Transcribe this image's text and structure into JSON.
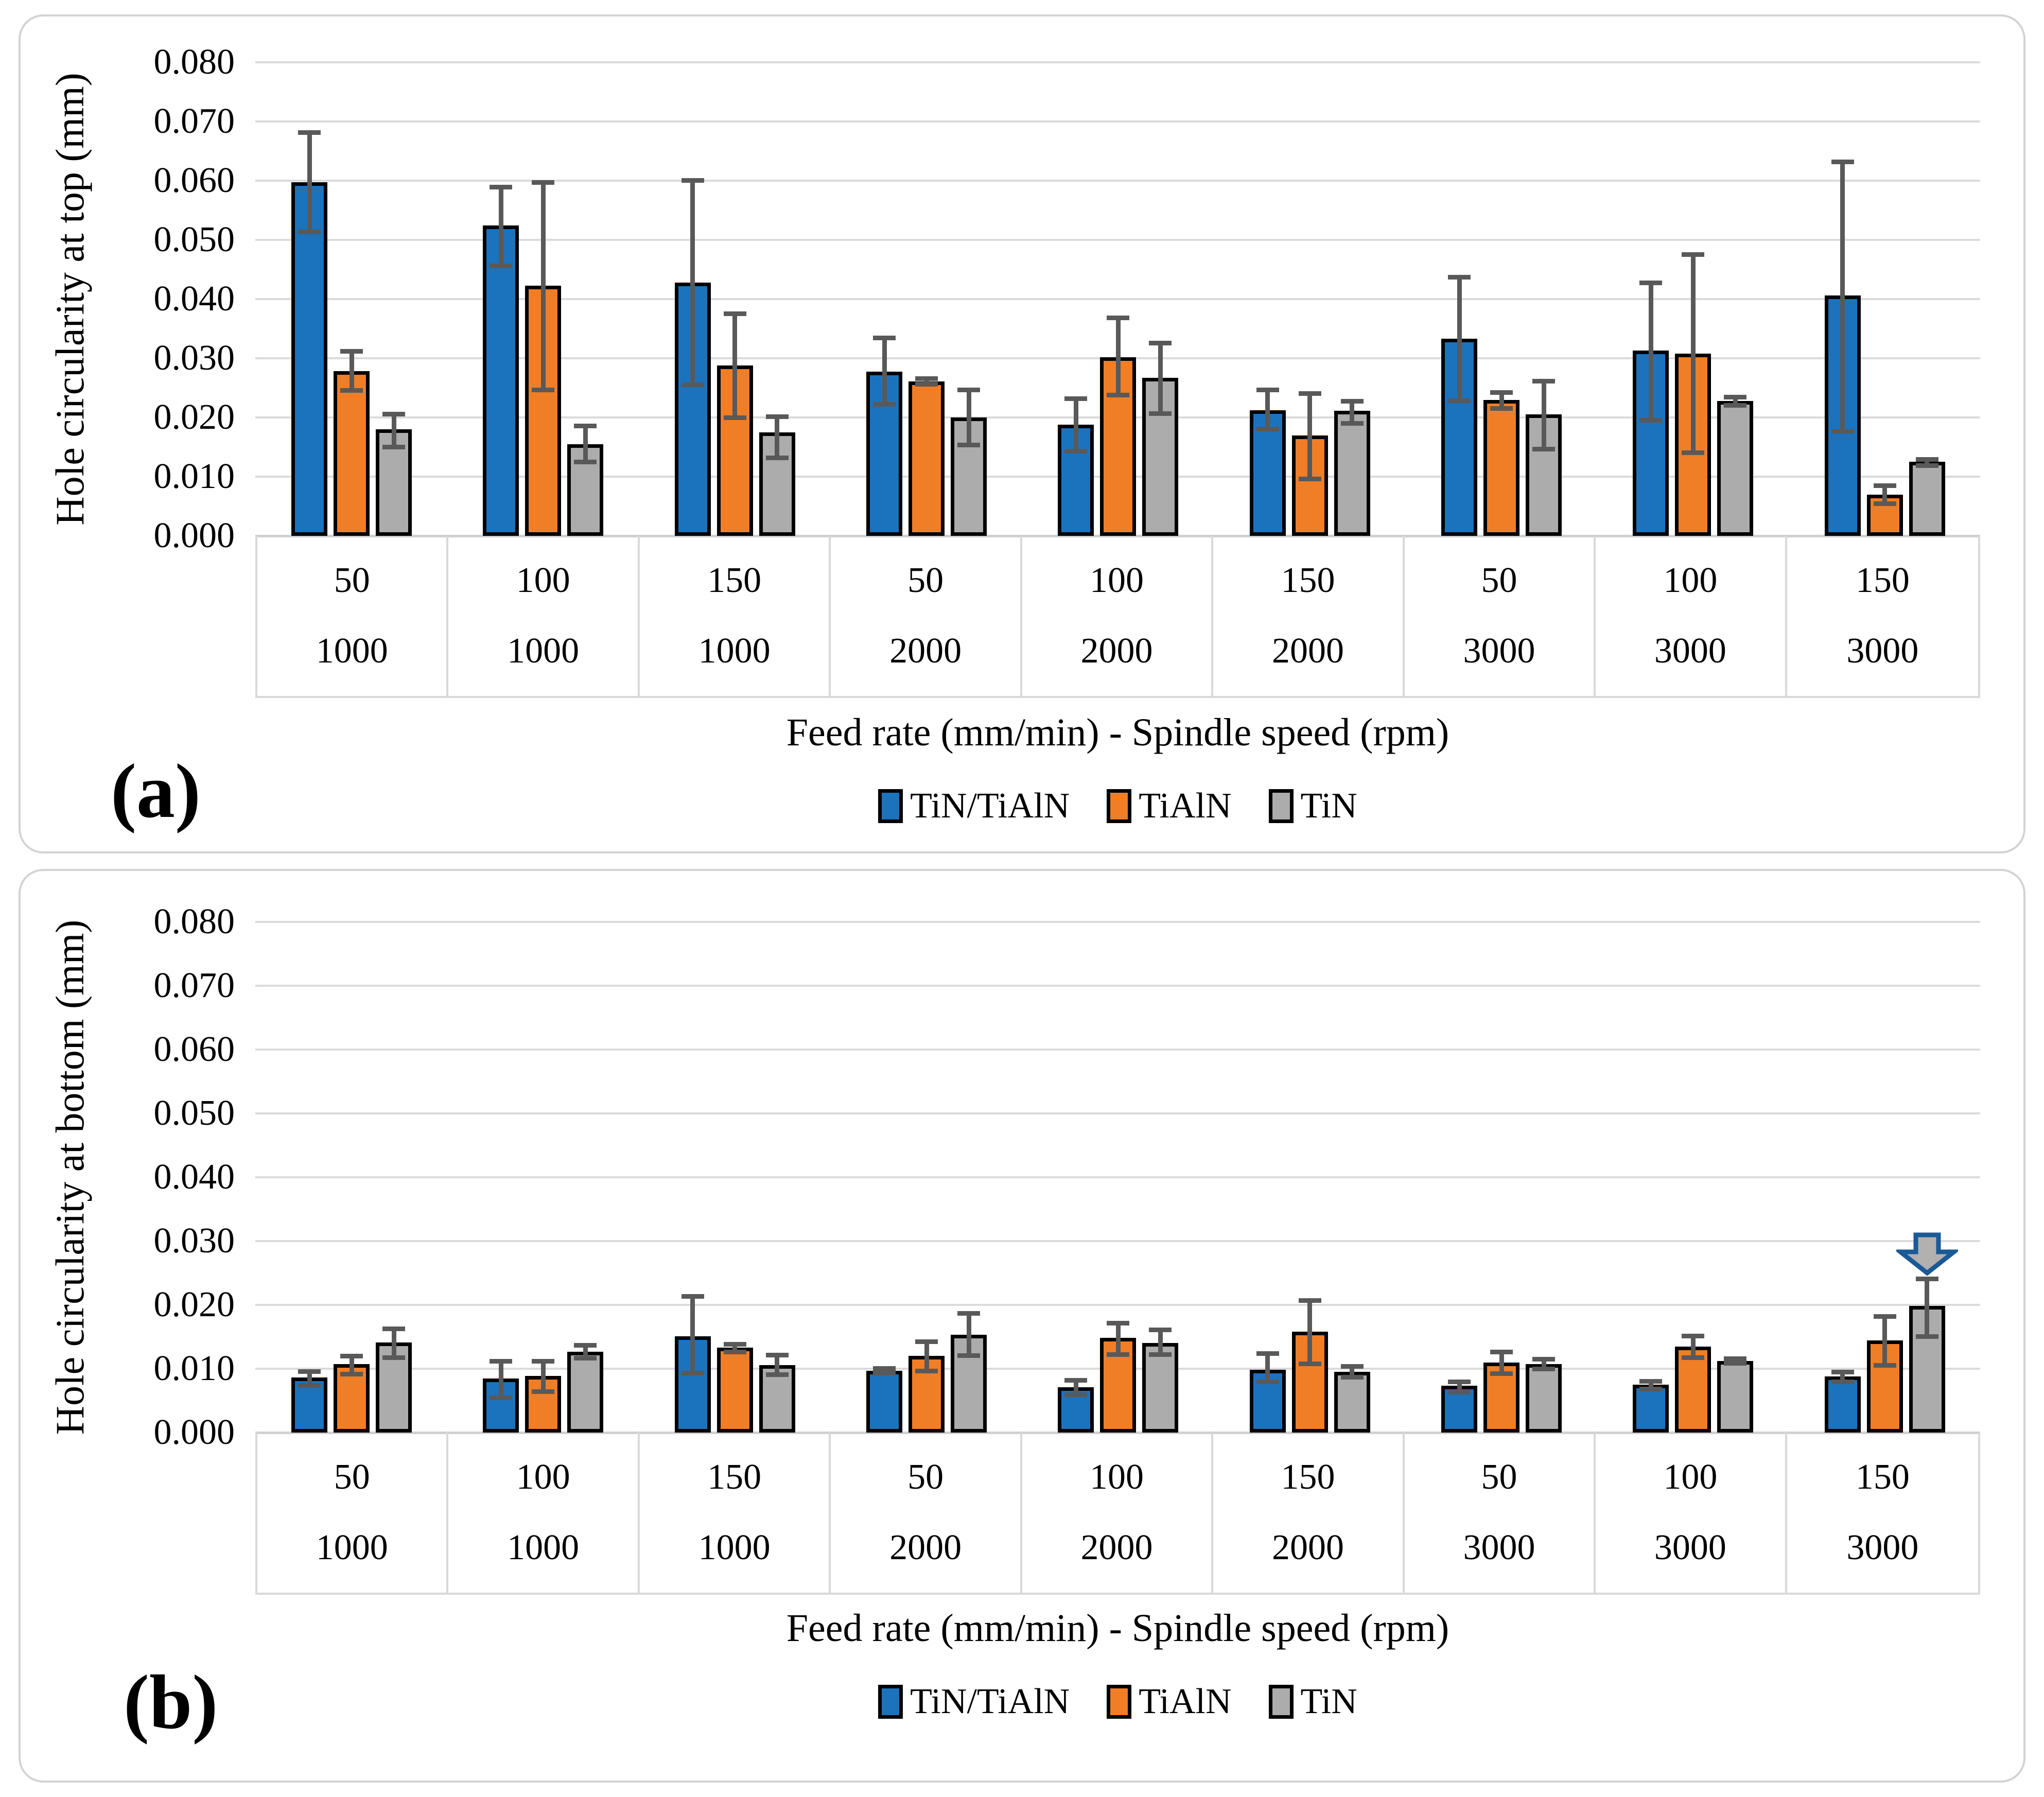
{
  "chart_data": [
    {
      "type": "bar",
      "panel_label": "(a)",
      "ylabel": "Hole circularity at top (mm)",
      "xlabel": "Feed rate (mm/min) - Spindle speed (rpm)",
      "ylim": [
        0,
        0.08
      ],
      "ytick_step": 0.01,
      "ytick_decimals": 3,
      "grid": true,
      "legend_position": "bottom-center",
      "categories_feed": [
        "50",
        "100",
        "150",
        "50",
        "100",
        "150",
        "50",
        "100",
        "150"
      ],
      "categories_speed": [
        "1000",
        "1000",
        "1000",
        "2000",
        "2000",
        "2000",
        "3000",
        "3000",
        "3000"
      ],
      "error_bar_color": "#595959",
      "series": [
        {
          "name": "TiN/TiAlN",
          "color": "#1b73be",
          "values": [
            0.0597,
            0.0524,
            0.0428,
            0.0277,
            0.0188,
            0.0212,
            0.0333,
            0.0313,
            0.0406
          ],
          "whisker_low": [
            0.0513,
            0.0456,
            0.0255,
            0.0222,
            0.0143,
            0.018,
            0.0228,
            0.0195,
            0.0176
          ],
          "whisker_high": [
            0.0682,
            0.059,
            0.0601,
            0.0335,
            0.0232,
            0.0247,
            0.0437,
            0.0428,
            0.0632
          ]
        },
        {
          "name": "TiAlN",
          "color": "#f07e27",
          "values": [
            0.0278,
            0.0423,
            0.0288,
            0.0261,
            0.0302,
            0.017,
            0.023,
            0.0308,
            0.007
          ],
          "whisker_low": [
            0.0245,
            0.0246,
            0.0199,
            0.0256,
            0.0237,
            0.0096,
            0.0215,
            0.014,
            0.0054
          ],
          "whisker_high": [
            0.0312,
            0.0597,
            0.0376,
            0.0266,
            0.0369,
            0.0241,
            0.0243,
            0.0476,
            0.0085
          ]
        },
        {
          "name": "TiN",
          "color": "#acacac",
          "values": [
            0.018,
            0.0155,
            0.0175,
            0.02,
            0.0267,
            0.0211,
            0.0205,
            0.0228,
            0.0125
          ],
          "whisker_low": [
            0.015,
            0.0124,
            0.0131,
            0.0153,
            0.0206,
            0.019,
            0.0146,
            0.022,
            0.0118
          ],
          "whisker_high": [
            0.0206,
            0.0186,
            0.0202,
            0.0247,
            0.0326,
            0.0228,
            0.0262,
            0.0235,
            0.013
          ]
        }
      ]
    },
    {
      "type": "bar",
      "panel_label": "(b)",
      "ylabel": "Hole circularity at bottom (mm)",
      "xlabel": "Feed rate (mm/min) - Spindle speed (rpm)",
      "ylim": [
        0,
        0.08
      ],
      "ytick_step": 0.01,
      "ytick_decimals": 3,
      "grid": true,
      "legend_position": "bottom-center",
      "categories_feed": [
        "50",
        "100",
        "150",
        "50",
        "100",
        "150",
        "50",
        "100",
        "150"
      ],
      "categories_speed": [
        "1000",
        "1000",
        "1000",
        "2000",
        "2000",
        "2000",
        "3000",
        "3000",
        "3000"
      ],
      "error_bar_color": "#595959",
      "series": [
        {
          "name": "TiN/TiAlN",
          "color": "#1b73be",
          "values": [
            0.0086,
            0.0085,
            0.0151,
            0.0097,
            0.0071,
            0.0098,
            0.0073,
            0.0075,
            0.0088
          ],
          "whisker_low": [
            0.0073,
            0.0054,
            0.0093,
            0.0093,
            0.0059,
            0.0079,
            0.0063,
            0.0068,
            0.0079
          ],
          "whisker_high": [
            0.0096,
            0.0112,
            0.0214,
            0.0101,
            0.0082,
            0.0124,
            0.008,
            0.0081,
            0.0095
          ]
        },
        {
          "name": "TiAlN",
          "color": "#f07e27",
          "values": [
            0.0107,
            0.0089,
            0.0133,
            0.012,
            0.0148,
            0.0158,
            0.011,
            0.0135,
            0.0144
          ],
          "whisker_low": [
            0.0091,
            0.0064,
            0.0126,
            0.0096,
            0.0122,
            0.0107,
            0.0092,
            0.0117,
            0.0105
          ],
          "whisker_high": [
            0.012,
            0.0112,
            0.0139,
            0.0143,
            0.0172,
            0.0207,
            0.0127,
            0.0152,
            0.0182
          ]
        },
        {
          "name": "TiN",
          "color": "#acacac",
          "values": [
            0.0141,
            0.0127,
            0.0106,
            0.0153,
            0.014,
            0.0095,
            0.0107,
            0.0112,
            0.0198
          ],
          "whisker_low": [
            0.0117,
            0.0116,
            0.009,
            0.012,
            0.0122,
            0.0086,
            0.0099,
            0.0108,
            0.015
          ],
          "whisker_high": [
            0.0163,
            0.0137,
            0.0122,
            0.0187,
            0.0161,
            0.0104,
            0.0115,
            0.0116,
            0.0241
          ]
        }
      ],
      "annotation": {
        "type": "down-arrow",
        "group_index": 8,
        "series_index": 2,
        "outline_color": "#1a5a96",
        "fill_color": "#b3b0b0"
      }
    }
  ]
}
